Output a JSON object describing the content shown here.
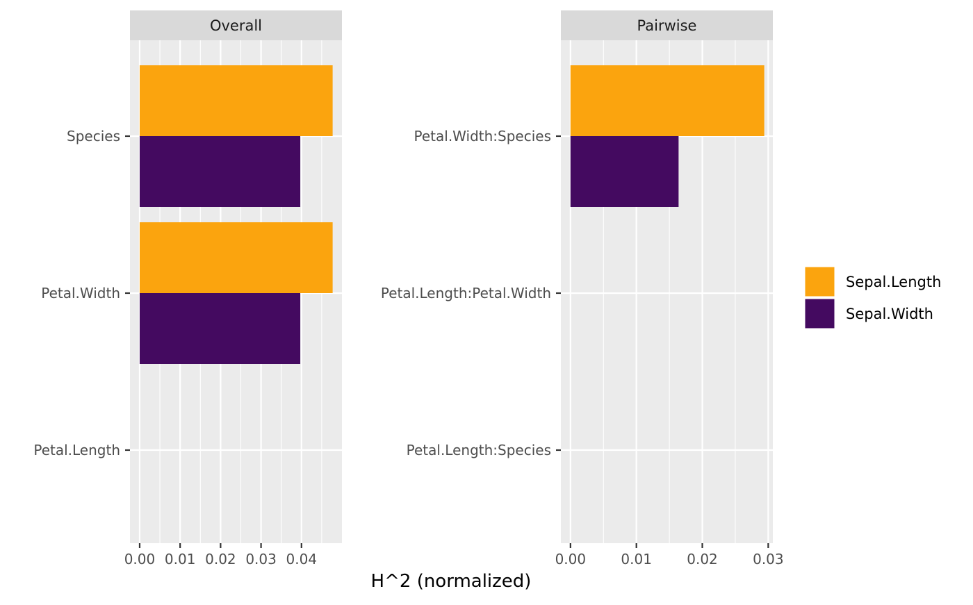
{
  "chart_data": {
    "type": "bar",
    "orientation": "horizontal",
    "xlabel": "H^2 (normalized)",
    "ylabel": "",
    "grid": true,
    "legend_position": "right",
    "colors": {
      "Sepal.Length": "#FBA40E",
      "Sepal.Width": "#440A60",
      "panel_background": "#EBEBEB",
      "strip_background": "#D9D9D9",
      "gridline": "#FFFFFF"
    },
    "legend": [
      "Sepal.Length",
      "Sepal.Width"
    ],
    "panels": [
      {
        "title": "Overall",
        "categories": [
          "Species",
          "Petal.Width",
          "Petal.Length"
        ],
        "xlim": [
          -0.0024,
          0.05
        ],
        "xticks": [
          0,
          0.01,
          0.02,
          0.03,
          0.04
        ],
        "xtick_labels": [
          "0.00",
          "0.01",
          "0.02",
          "0.03",
          "0.04"
        ],
        "series": [
          {
            "name": "Sepal.Length",
            "values": [
              0.0477,
              0.0477,
              0
            ]
          },
          {
            "name": "Sepal.Width",
            "values": [
              0.0397,
              0.0397,
              0
            ]
          }
        ]
      },
      {
        "title": "Pairwise",
        "categories": [
          "Petal.Width:Species",
          "Petal.Length:Petal.Width",
          "Petal.Length:Species"
        ],
        "xlim": [
          -0.00146,
          0.0307
        ],
        "xticks": [
          0,
          0.01,
          0.02,
          0.03
        ],
        "xtick_labels": [
          "0.00",
          "0.01",
          "0.02",
          "0.03"
        ],
        "series": [
          {
            "name": "Sepal.Length",
            "values": [
              0.0294,
              0,
              0
            ]
          },
          {
            "name": "Sepal.Width",
            "values": [
              0.0164,
              0,
              0
            ]
          }
        ]
      }
    ]
  }
}
